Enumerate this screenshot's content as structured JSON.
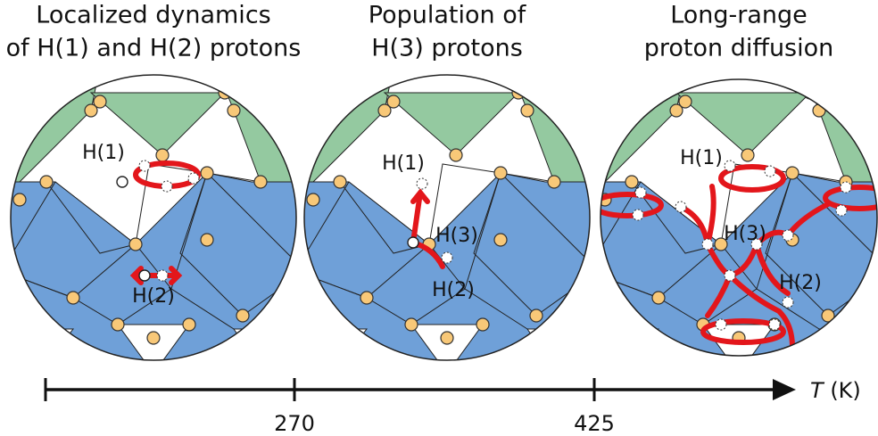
{
  "panels": [
    {
      "title": [
        "Localized dynamics",
        "of H(1) and H(2) protons"
      ],
      "labels": [
        "H(1)",
        "H(2)"
      ]
    },
    {
      "title": [
        "Population of",
        "H(3) protons"
      ],
      "labels": [
        "H(1)",
        "H(3)",
        "H(2)"
      ]
    },
    {
      "title": [
        "Long-range",
        "proton diffusion"
      ],
      "labels": [
        "H(1)",
        "H(3)",
        "H(2)"
      ]
    }
  ],
  "axis": {
    "variable": "T",
    "unit": "(K)",
    "ticks": [
      270,
      425
    ]
  }
}
